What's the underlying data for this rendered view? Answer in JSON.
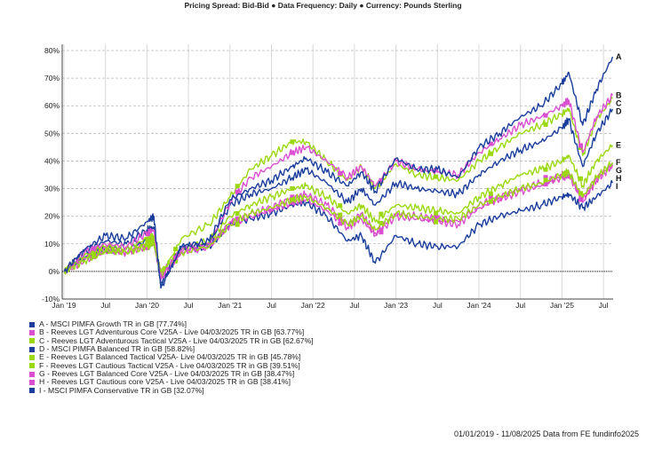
{
  "title": "Pricing Spread: Bid-Bid ● Data Frequency: Daily ● Currency: Pounds Sterling",
  "footer": "01/01/2019 - 11/08/2025 Data from FE fundinfo2025",
  "chart_data": {
    "type": "line",
    "title": "Pricing Spread: Bid-Bid ● Data Frequency: Daily ● Currency: Pounds Sterling",
    "xlabel": "",
    "ylabel": "",
    "ylim": [
      -10,
      80
    ],
    "yticks": [
      -10,
      0,
      10,
      20,
      30,
      40,
      50,
      60,
      70,
      80
    ],
    "ytick_labels": [
      "-10%",
      "0%",
      "10%",
      "20%",
      "30%",
      "40%",
      "50%",
      "60%",
      "70%",
      "80%"
    ],
    "xlim": [
      "2019-01-01",
      "2025-08-11"
    ],
    "xticks": [
      "2019-01",
      "2019-07",
      "2020-01",
      "2020-07",
      "2021-01",
      "2021-07",
      "2022-01",
      "2022-07",
      "2023-01",
      "2023-07",
      "2024-01",
      "2024-07",
      "2025-01",
      "2025-07"
    ],
    "xtick_labels": [
      "Jan '19",
      "Jul",
      "Jan '20",
      "Jul",
      "Jan '21",
      "Jul",
      "Jan '22",
      "Jul",
      "Jan '23",
      "Jul",
      "Jan '24",
      "Jul",
      "Jan '25",
      "Jul"
    ],
    "grid": true,
    "legend_position": "bottom-left",
    "x": [
      "2019-01",
      "2019-04",
      "2019-07",
      "2019-10",
      "2020-01",
      "2020-02",
      "2020-03",
      "2020-06",
      "2020-10",
      "2021-01",
      "2021-04",
      "2021-07",
      "2021-10",
      "2021-12",
      "2022-03",
      "2022-06",
      "2022-08",
      "2022-10",
      "2023-01",
      "2023-04",
      "2023-07",
      "2023-10",
      "2024-01",
      "2024-04",
      "2024-07",
      "2024-10",
      "2025-01",
      "2025-02",
      "2025-04",
      "2025-06",
      "2025-08"
    ],
    "series": [
      {
        "letter": "A",
        "name": "A - MSCI PIMFA Growth TR in GB [77.74%]",
        "color": "#1a3d9c",
        "values": [
          0,
          8,
          13,
          12,
          18,
          20,
          -6,
          9,
          11,
          26,
          30,
          33,
          38,
          41,
          36,
          31,
          36,
          29,
          41,
          37,
          37,
          34,
          45,
          50,
          56,
          60,
          68,
          72,
          53,
          66,
          77.74
        ]
      },
      {
        "letter": "B",
        "name": "B - Reeves LGT Adventurous Core V25A - Live 04/03/2025 TR in GB [63.77%]",
        "color": "#d94fd0",
        "values": [
          0,
          7,
          10,
          9,
          14,
          15,
          -3,
          8,
          10,
          25,
          34,
          38,
          43,
          45,
          40,
          34,
          38,
          31,
          40,
          37,
          36,
          35,
          43,
          48,
          53,
          56,
          60,
          62,
          43,
          56,
          63.77
        ]
      },
      {
        "letter": "C",
        "name": "C - Reeves LGT Adventurous Tactical V25A - Live 04/03/2025 TR in GB [62.67%]",
        "color": "#9bd80f",
        "values": [
          0,
          6,
          9,
          8,
          12,
          13,
          -2,
          12,
          17,
          27,
          37,
          42,
          47,
          47,
          40,
          33,
          38,
          30,
          39,
          35,
          34,
          33,
          40,
          45,
          50,
          53,
          57,
          59,
          42,
          55,
          62.67
        ]
      },
      {
        "letter": "D",
        "name": "D - MSCI PIMFA Balanced TR in GB [58.82%]",
        "color": "#1a3d9c",
        "values": [
          0,
          7,
          11,
          10,
          15,
          16,
          -5,
          9,
          10,
          24,
          28,
          30,
          34,
          37,
          32,
          25,
          30,
          24,
          32,
          30,
          29,
          28,
          35,
          40,
          44,
          47,
          52,
          55,
          38,
          50,
          58.82
        ]
      },
      {
        "letter": "E",
        "name": "E - Reeves LGT Balanced Tactical V25A- Live 04/03/2025 TR in GB [45.78%]",
        "color": "#9bd80f",
        "values": [
          0,
          5,
          8,
          7,
          10,
          11,
          -1,
          8,
          11,
          20,
          24,
          27,
          30,
          31,
          27,
          21,
          24,
          18,
          24,
          23,
          22,
          21,
          27,
          31,
          35,
          37,
          40,
          42,
          31,
          40,
          45.78
        ]
      },
      {
        "letter": "F",
        "name": "F - Reeves LGT Cautious Tactical V25A - Live 04/03/2025 TR in GB [39.51%]",
        "color": "#9bd80f",
        "values": [
          0,
          4,
          7,
          7,
          9,
          10,
          0,
          7,
          9,
          17,
          21,
          23,
          26,
          27,
          23,
          17,
          20,
          15,
          21,
          20,
          19,
          19,
          24,
          27,
          30,
          32,
          35,
          36,
          27,
          34,
          39.51
        ]
      },
      {
        "letter": "G",
        "name": "G - Reeves LGT Balanced Core V25A - Live 04/03/2025 TR in GB [38.47%]",
        "color": "#d94fd0",
        "values": [
          0,
          5,
          8,
          7,
          10,
          11,
          -2,
          7,
          9,
          18,
          21,
          23,
          27,
          28,
          24,
          17,
          21,
          14,
          21,
          20,
          19,
          18,
          24,
          27,
          30,
          32,
          35,
          36,
          26,
          34,
          38.47
        ]
      },
      {
        "letter": "H",
        "name": "H - Reeves LGT Cautious core V25A - Live 04/03/2025 TR in GB [38.41%]",
        "color": "#d94fd0",
        "values": [
          0,
          4,
          7,
          7,
          9,
          10,
          -1,
          7,
          9,
          17,
          20,
          22,
          25,
          26,
          22,
          16,
          19,
          13,
          20,
          19,
          18,
          17,
          23,
          26,
          29,
          31,
          34,
          35,
          25,
          33,
          38.41
        ]
      },
      {
        "letter": "I",
        "name": "I - MSCI PIMFA Conservative TR in GB [32.07%]",
        "color": "#1a3d9c",
        "values": [
          0,
          5,
          8,
          8,
          11,
          12,
          -4,
          8,
          9,
          17,
          19,
          21,
          24,
          25,
          20,
          11,
          13,
          3,
          13,
          10,
          9,
          9,
          17,
          20,
          22,
          24,
          27,
          28,
          23,
          27,
          32.07
        ]
      }
    ]
  }
}
